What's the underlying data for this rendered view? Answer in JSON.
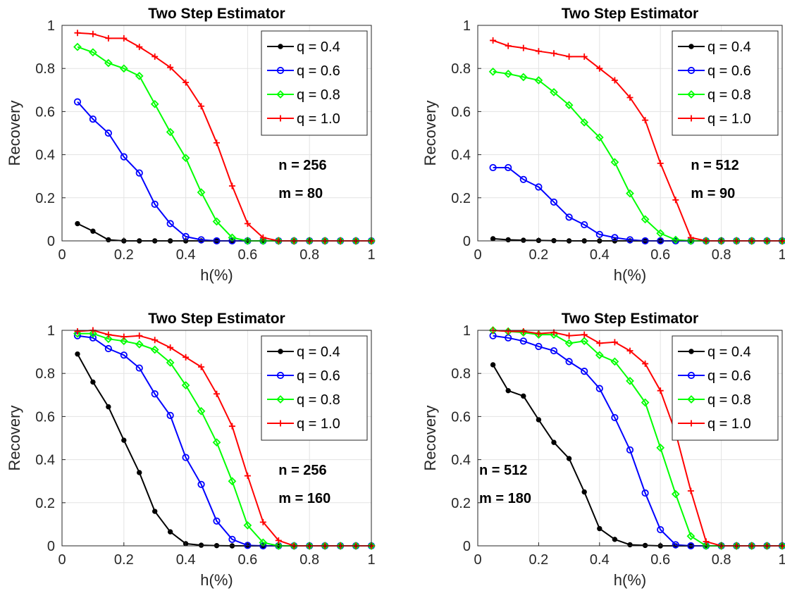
{
  "chart_data": [
    {
      "type": "line",
      "title": "Two Step Estimator",
      "xlabel": "h(%)",
      "ylabel": "Recovery",
      "xlim": [
        0,
        1
      ],
      "ylim": [
        0,
        1
      ],
      "xticks": [
        "0",
        "0.2",
        "0.4",
        "0.6",
        "0.8",
        "1"
      ],
      "yticks": [
        "0",
        "0.2",
        "0.4",
        "0.6",
        "0.8",
        "1"
      ],
      "grid": true,
      "legend_position": "top-right",
      "x": [
        0.05,
        0.1,
        0.15,
        0.2,
        0.25,
        0.3,
        0.35,
        0.4,
        0.45,
        0.5,
        0.55,
        0.6,
        0.65,
        0.7,
        0.75,
        0.8,
        0.85,
        0.9,
        0.95,
        1.0
      ],
      "annotations": [
        "n = 256",
        "m = 80"
      ],
      "annotation_position": "right",
      "series": [
        {
          "name": "q = 0.4",
          "color": "#000000",
          "marker": "dot",
          "values": [
            0.08,
            0.045,
            0.005,
            0,
            0,
            0,
            0,
            0,
            0,
            0,
            0,
            0,
            0,
            0,
            0,
            0,
            0,
            0,
            0,
            0
          ]
        },
        {
          "name": "q = 0.6",
          "color": "#0000ff",
          "marker": "circle",
          "values": [
            0.645,
            0.565,
            0.5,
            0.39,
            0.315,
            0.17,
            0.08,
            0.02,
            0.005,
            0,
            0,
            0,
            0,
            0,
            0,
            0,
            0,
            0,
            0,
            0
          ]
        },
        {
          "name": "q = 0.8",
          "color": "#00ff00",
          "marker": "diamond",
          "values": [
            0.9,
            0.875,
            0.825,
            0.8,
            0.765,
            0.635,
            0.505,
            0.385,
            0.225,
            0.09,
            0.015,
            0,
            0,
            0,
            0,
            0,
            0,
            0,
            0,
            0
          ]
        },
        {
          "name": "q = 1.0",
          "color": "#ff0000",
          "marker": "plus",
          "values": [
            0.965,
            0.96,
            0.94,
            0.94,
            0.9,
            0.855,
            0.805,
            0.735,
            0.625,
            0.455,
            0.255,
            0.08,
            0.015,
            0,
            0,
            0,
            0,
            0,
            0,
            0
          ]
        }
      ]
    },
    {
      "type": "line",
      "title": "Two Step Estimator",
      "xlabel": "h(%)",
      "ylabel": "Recovery",
      "xlim": [
        0,
        1
      ],
      "ylim": [
        0,
        1
      ],
      "xticks": [
        "0",
        "0.2",
        "0.4",
        "0.6",
        "0.8",
        "1"
      ],
      "yticks": [
        "0",
        "0.2",
        "0.4",
        "0.6",
        "0.8",
        "1"
      ],
      "grid": true,
      "legend_position": "top-right",
      "x": [
        0.05,
        0.1,
        0.15,
        0.2,
        0.25,
        0.3,
        0.35,
        0.4,
        0.45,
        0.5,
        0.55,
        0.6,
        0.65,
        0.7,
        0.75,
        0.8,
        0.85,
        0.9,
        0.95,
        1.0
      ],
      "annotations": [
        "n = 512",
        "m = 90"
      ],
      "annotation_position": "right",
      "series": [
        {
          "name": "q = 0.4",
          "color": "#000000",
          "marker": "dot",
          "values": [
            0.01,
            0.005,
            0.003,
            0.002,
            0.001,
            0,
            0,
            0,
            0,
            0,
            0,
            0,
            0,
            0,
            0,
            0,
            0,
            0,
            0,
            0
          ]
        },
        {
          "name": "q = 0.6",
          "color": "#0000ff",
          "marker": "circle",
          "values": [
            0.34,
            0.34,
            0.285,
            0.25,
            0.18,
            0.11,
            0.075,
            0.03,
            0.015,
            0.005,
            0,
            0,
            0,
            0,
            0,
            0,
            0,
            0,
            0,
            0
          ]
        },
        {
          "name": "q = 0.8",
          "color": "#00ff00",
          "marker": "diamond",
          "values": [
            0.785,
            0.775,
            0.76,
            0.745,
            0.69,
            0.63,
            0.55,
            0.48,
            0.365,
            0.22,
            0.1,
            0.035,
            0.005,
            0,
            0,
            0,
            0,
            0,
            0,
            0
          ]
        },
        {
          "name": "q = 1.0",
          "color": "#ff0000",
          "marker": "plus",
          "values": [
            0.93,
            0.905,
            0.895,
            0.88,
            0.87,
            0.855,
            0.855,
            0.8,
            0.745,
            0.665,
            0.56,
            0.36,
            0.19,
            0.015,
            0,
            0,
            0,
            0,
            0,
            0
          ]
        }
      ]
    },
    {
      "type": "line",
      "title": "Two Step Estimator",
      "xlabel": "h(%)",
      "ylabel": "Recovery",
      "xlim": [
        0,
        1
      ],
      "ylim": [
        0,
        1
      ],
      "xticks": [
        "0",
        "0.2",
        "0.4",
        "0.6",
        "0.8",
        "1"
      ],
      "yticks": [
        "0",
        "0.2",
        "0.4",
        "0.6",
        "0.8",
        "1"
      ],
      "grid": true,
      "legend_position": "top-right",
      "x": [
        0.05,
        0.1,
        0.15,
        0.2,
        0.25,
        0.3,
        0.35,
        0.4,
        0.45,
        0.5,
        0.55,
        0.6,
        0.65,
        0.7,
        0.75,
        0.8,
        0.85,
        0.9,
        0.95,
        1.0
      ],
      "annotations": [
        "n = 256",
        "m = 160"
      ],
      "annotation_position": "right",
      "series": [
        {
          "name": "q = 0.4",
          "color": "#000000",
          "marker": "dot",
          "values": [
            0.89,
            0.76,
            0.645,
            0.49,
            0.34,
            0.16,
            0.065,
            0.01,
            0.003,
            0.001,
            0,
            0,
            0,
            0,
            0,
            0,
            0,
            0,
            0,
            0
          ]
        },
        {
          "name": "q = 0.6",
          "color": "#0000ff",
          "marker": "circle",
          "values": [
            0.975,
            0.965,
            0.915,
            0.885,
            0.825,
            0.705,
            0.605,
            0.41,
            0.285,
            0.115,
            0.03,
            0.002,
            0,
            0,
            0,
            0,
            0,
            0,
            0,
            0
          ]
        },
        {
          "name": "q = 0.8",
          "color": "#00ff00",
          "marker": "diamond",
          "values": [
            0.985,
            0.985,
            0.96,
            0.95,
            0.935,
            0.91,
            0.85,
            0.745,
            0.625,
            0.48,
            0.3,
            0.095,
            0.015,
            0,
            0,
            0,
            0,
            0,
            0,
            0
          ]
        },
        {
          "name": "q = 1.0",
          "color": "#ff0000",
          "marker": "plus",
          "values": [
            0.995,
            1.0,
            0.98,
            0.97,
            0.975,
            0.955,
            0.92,
            0.875,
            0.83,
            0.705,
            0.555,
            0.325,
            0.11,
            0.025,
            0,
            0,
            0,
            0,
            0,
            0
          ]
        }
      ]
    },
    {
      "type": "line",
      "title": "Two Step Estimator",
      "xlabel": "h(%)",
      "ylabel": "Recovery",
      "xlim": [
        0,
        1
      ],
      "ylim": [
        0,
        1
      ],
      "xticks": [
        "0",
        "0.2",
        "0.4",
        "0.6",
        "0.8",
        "1"
      ],
      "yticks": [
        "0",
        "0.2",
        "0.4",
        "0.6",
        "0.8",
        "1"
      ],
      "grid": true,
      "legend_position": "top-right",
      "x": [
        0.05,
        0.1,
        0.15,
        0.2,
        0.25,
        0.3,
        0.35,
        0.4,
        0.45,
        0.5,
        0.55,
        0.6,
        0.65,
        0.7,
        0.75,
        0.8,
        0.85,
        0.9,
        0.95,
        1.0
      ],
      "annotations": [
        "n = 512",
        "m = 180"
      ],
      "annotation_position": "left",
      "series": [
        {
          "name": "q = 0.4",
          "color": "#000000",
          "marker": "dot",
          "values": [
            0.84,
            0.72,
            0.695,
            0.585,
            0.48,
            0.405,
            0.25,
            0.08,
            0.03,
            0.005,
            0.002,
            0,
            0,
            0,
            0,
            0,
            0,
            0,
            0,
            0
          ]
        },
        {
          "name": "q = 0.6",
          "color": "#0000ff",
          "marker": "circle",
          "values": [
            0.975,
            0.965,
            0.95,
            0.925,
            0.905,
            0.855,
            0.81,
            0.73,
            0.595,
            0.445,
            0.245,
            0.075,
            0.005,
            0,
            0,
            0,
            0,
            0,
            0,
            0
          ]
        },
        {
          "name": "q = 0.8",
          "color": "#00ff00",
          "marker": "diamond",
          "values": [
            1.0,
            0.995,
            0.99,
            0.98,
            0.98,
            0.94,
            0.95,
            0.885,
            0.855,
            0.765,
            0.665,
            0.455,
            0.24,
            0.045,
            0,
            0,
            0,
            0,
            0,
            0
          ]
        },
        {
          "name": "q = 1.0",
          "color": "#ff0000",
          "marker": "plus",
          "values": [
            1.0,
            0.995,
            0.995,
            0.985,
            0.99,
            0.975,
            0.98,
            0.94,
            0.945,
            0.905,
            0.845,
            0.72,
            0.525,
            0.255,
            0.02,
            0,
            0,
            0,
            0,
            0
          ]
        }
      ]
    }
  ]
}
